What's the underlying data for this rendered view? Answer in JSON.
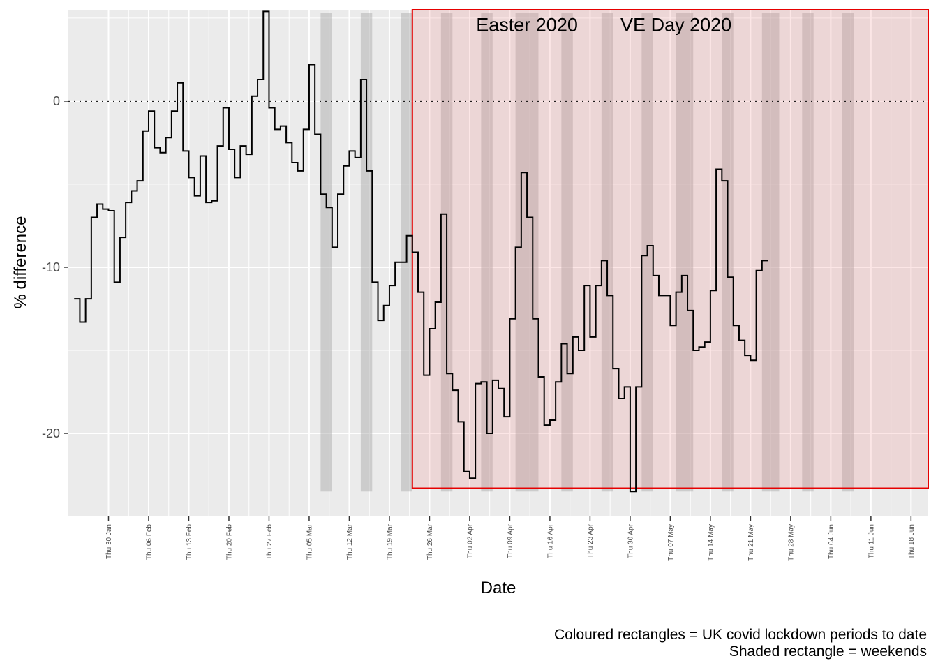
{
  "chart_data": {
    "type": "line",
    "line_style": "step",
    "xlabel": "Date",
    "ylabel": "% difference",
    "x_start": "2020-01-23",
    "x_end": "2020-06-21",
    "ylim": [
      -25,
      5.5
    ],
    "y_ticks": [
      0,
      -10,
      -20
    ],
    "y_tick_labels": [
      "0",
      "-10",
      "-20"
    ],
    "x_ticks": [
      "2020-01-30",
      "2020-02-06",
      "2020-02-13",
      "2020-02-20",
      "2020-02-27",
      "2020-03-05",
      "2020-03-12",
      "2020-03-19",
      "2020-03-26",
      "2020-04-02",
      "2020-04-09",
      "2020-04-16",
      "2020-04-23",
      "2020-04-30",
      "2020-05-07",
      "2020-05-14",
      "2020-05-21",
      "2020-05-28",
      "2020-06-04",
      "2020-06-11",
      "2020-06-18"
    ],
    "x_tick_labels": [
      "Thu 30 Jan",
      "Thu 06 Feb",
      "Thu 13 Feb",
      "Thu 20 Feb",
      "Thu 27 Feb",
      "Thu 05 Mar",
      "Thu 12 Mar",
      "Thu 19 Mar",
      "Thu 26 Mar",
      "Thu 02 Apr",
      "Thu 09 Apr",
      "Thu 16 Apr",
      "Thu 23 Apr",
      "Thu 30 Apr",
      "Thu 07 May",
      "Thu 14 May",
      "Thu 21 May",
      "Thu 28 May",
      "Thu 04 Jun",
      "Thu 11 Jun",
      "Thu 18 Jun"
    ],
    "reference_line_y": 0,
    "grid": true,
    "weekends": [
      {
        "start": "2020-03-07",
        "end": "2020-03-09"
      },
      {
        "start": "2020-03-14",
        "end": "2020-03-16"
      },
      {
        "start": "2020-03-21",
        "end": "2020-03-23"
      },
      {
        "start": "2020-03-28",
        "end": "2020-03-30"
      },
      {
        "start": "2020-04-04",
        "end": "2020-04-06"
      },
      {
        "start": "2020-04-10",
        "end": "2020-04-14"
      },
      {
        "start": "2020-04-18",
        "end": "2020-04-20"
      },
      {
        "start": "2020-04-25",
        "end": "2020-04-27"
      },
      {
        "start": "2020-05-02",
        "end": "2020-05-04"
      },
      {
        "start": "2020-05-08",
        "end": "2020-05-11"
      },
      {
        "start": "2020-05-16",
        "end": "2020-05-18"
      },
      {
        "start": "2020-05-23",
        "end": "2020-05-26"
      },
      {
        "start": "2020-05-30",
        "end": "2020-06-01"
      },
      {
        "start": "2020-06-06",
        "end": "2020-06-08"
      }
    ],
    "weekends_ylim": [
      -23.5,
      5.3
    ],
    "lockdown": {
      "start": "2020-03-23",
      "end": "2020-06-21",
      "ylim": [
        -23.3,
        5.5
      ]
    },
    "annotations": [
      {
        "text": "Easter 2020",
        "date": "2020-04-12",
        "y": 4.6
      },
      {
        "text": "VE Day 2020",
        "date": "2020-05-08",
        "y": 4.6
      }
    ],
    "series": [
      {
        "values": [
          [
            "2020-01-24",
            -11.9
          ],
          [
            "2020-01-25",
            -13.3
          ],
          [
            "2020-01-26",
            -11.9
          ],
          [
            "2020-01-27",
            -7.0
          ],
          [
            "2020-01-28",
            -6.2
          ],
          [
            "2020-01-29",
            -6.5
          ],
          [
            "2020-01-30",
            -6.6
          ],
          [
            "2020-01-31",
            -10.9
          ],
          [
            "2020-02-01",
            -8.2
          ],
          [
            "2020-02-02",
            -6.1
          ],
          [
            "2020-02-03",
            -5.4
          ],
          [
            "2020-02-04",
            -4.8
          ],
          [
            "2020-02-05",
            -1.8
          ],
          [
            "2020-02-06",
            -0.6
          ],
          [
            "2020-02-07",
            -2.8
          ],
          [
            "2020-02-08",
            -3.1
          ],
          [
            "2020-02-09",
            -2.2
          ],
          [
            "2020-02-10",
            -0.6
          ],
          [
            "2020-02-11",
            1.1
          ],
          [
            "2020-02-12",
            -3.0
          ],
          [
            "2020-02-13",
            -4.6
          ],
          [
            "2020-02-14",
            -5.7
          ],
          [
            "2020-02-15",
            -3.3
          ],
          [
            "2020-02-16",
            -6.1
          ],
          [
            "2020-02-17",
            -6.0
          ],
          [
            "2020-02-18",
            -2.7
          ],
          [
            "2020-02-19",
            -0.4
          ],
          [
            "2020-02-20",
            -2.9
          ],
          [
            "2020-02-21",
            -4.6
          ],
          [
            "2020-02-22",
            -2.7
          ],
          [
            "2020-02-23",
            -3.2
          ],
          [
            "2020-02-24",
            0.3
          ],
          [
            "2020-02-25",
            1.3
          ],
          [
            "2020-02-26",
            5.4
          ],
          [
            "2020-02-27",
            -0.4
          ],
          [
            "2020-02-28",
            -1.7
          ],
          [
            "2020-02-29",
            -1.5
          ],
          [
            "2020-03-01",
            -2.5
          ],
          [
            "2020-03-02",
            -3.7
          ],
          [
            "2020-03-03",
            -4.2
          ],
          [
            "2020-03-04",
            -1.7
          ],
          [
            "2020-03-05",
            2.2
          ],
          [
            "2020-03-06",
            -2.0
          ],
          [
            "2020-03-07",
            -5.6
          ],
          [
            "2020-03-08",
            -6.4
          ],
          [
            "2020-03-09",
            -8.8
          ],
          [
            "2020-03-10",
            -5.6
          ],
          [
            "2020-03-11",
            -3.9
          ],
          [
            "2020-03-12",
            -3.0
          ],
          [
            "2020-03-13",
            -3.4
          ],
          [
            "2020-03-14",
            1.3
          ],
          [
            "2020-03-15",
            -4.2
          ],
          [
            "2020-03-16",
            -10.9
          ],
          [
            "2020-03-17",
            -13.2
          ],
          [
            "2020-03-18",
            -12.3
          ],
          [
            "2020-03-19",
            -11.1
          ],
          [
            "2020-03-20",
            -9.7
          ],
          [
            "2020-03-21",
            -9.7
          ],
          [
            "2020-03-22",
            -8.1
          ],
          [
            "2020-03-23",
            -9.1
          ],
          [
            "2020-03-24",
            -11.5
          ],
          [
            "2020-03-25",
            -16.5
          ],
          [
            "2020-03-26",
            -13.7
          ],
          [
            "2020-03-27",
            -12.1
          ],
          [
            "2020-03-28",
            -6.8
          ],
          [
            "2020-03-29",
            -16.4
          ],
          [
            "2020-03-30",
            -17.4
          ],
          [
            "2020-03-31",
            -19.3
          ],
          [
            "2020-04-01",
            -22.3
          ],
          [
            "2020-04-02",
            -22.7
          ],
          [
            "2020-04-03",
            -17.0
          ],
          [
            "2020-04-04",
            -16.9
          ],
          [
            "2020-04-05",
            -20.0
          ],
          [
            "2020-04-06",
            -16.8
          ],
          [
            "2020-04-07",
            -17.3
          ],
          [
            "2020-04-08",
            -19.0
          ],
          [
            "2020-04-09",
            -13.1
          ],
          [
            "2020-04-10",
            -8.8
          ],
          [
            "2020-04-11",
            -4.3
          ],
          [
            "2020-04-12",
            -7.0
          ],
          [
            "2020-04-13",
            -13.1
          ],
          [
            "2020-04-14",
            -16.6
          ],
          [
            "2020-04-15",
            -19.5
          ],
          [
            "2020-04-16",
            -19.2
          ],
          [
            "2020-04-17",
            -16.9
          ],
          [
            "2020-04-18",
            -14.6
          ],
          [
            "2020-04-19",
            -16.4
          ],
          [
            "2020-04-20",
            -14.2
          ],
          [
            "2020-04-21",
            -15.0
          ],
          [
            "2020-04-22",
            -11.1
          ],
          [
            "2020-04-23",
            -14.2
          ],
          [
            "2020-04-24",
            -11.1
          ],
          [
            "2020-04-25",
            -9.6
          ],
          [
            "2020-04-26",
            -11.7
          ],
          [
            "2020-04-27",
            -16.1
          ],
          [
            "2020-04-28",
            -17.9
          ],
          [
            "2020-04-29",
            -17.2
          ],
          [
            "2020-04-30",
            -23.5
          ],
          [
            "2020-05-01",
            -17.2
          ],
          [
            "2020-05-02",
            -9.3
          ],
          [
            "2020-05-03",
            -8.7
          ],
          [
            "2020-05-04",
            -10.5
          ],
          [
            "2020-05-05",
            -11.7
          ],
          [
            "2020-05-06",
            -11.7
          ],
          [
            "2020-05-07",
            -13.5
          ],
          [
            "2020-05-08",
            -11.5
          ],
          [
            "2020-05-09",
            -10.5
          ],
          [
            "2020-05-10",
            -12.6
          ],
          [
            "2020-05-11",
            -15.0
          ],
          [
            "2020-05-12",
            -14.8
          ],
          [
            "2020-05-13",
            -14.5
          ],
          [
            "2020-05-14",
            -11.4
          ],
          [
            "2020-05-15",
            -4.1
          ],
          [
            "2020-05-16",
            -4.8
          ],
          [
            "2020-05-17",
            -10.6
          ],
          [
            "2020-05-18",
            -13.5
          ],
          [
            "2020-05-19",
            -14.4
          ],
          [
            "2020-05-20",
            -15.3
          ],
          [
            "2020-05-21",
            -15.6
          ],
          [
            "2020-05-22",
            -10.2
          ],
          [
            "2020-05-23",
            -9.6
          ]
        ]
      }
    ],
    "caption": [
      "Coloured rectangles = UK covid lockdown periods to date",
      "Shaded rectangle = weekends"
    ],
    "colors": {
      "panel_bg": "#ebebeb",
      "grid": "#ffffff",
      "line": "#000000",
      "weekend": "#a6a6a6",
      "lockdown_fill": "#f08080",
      "lockdown_border": "#e60000"
    }
  }
}
